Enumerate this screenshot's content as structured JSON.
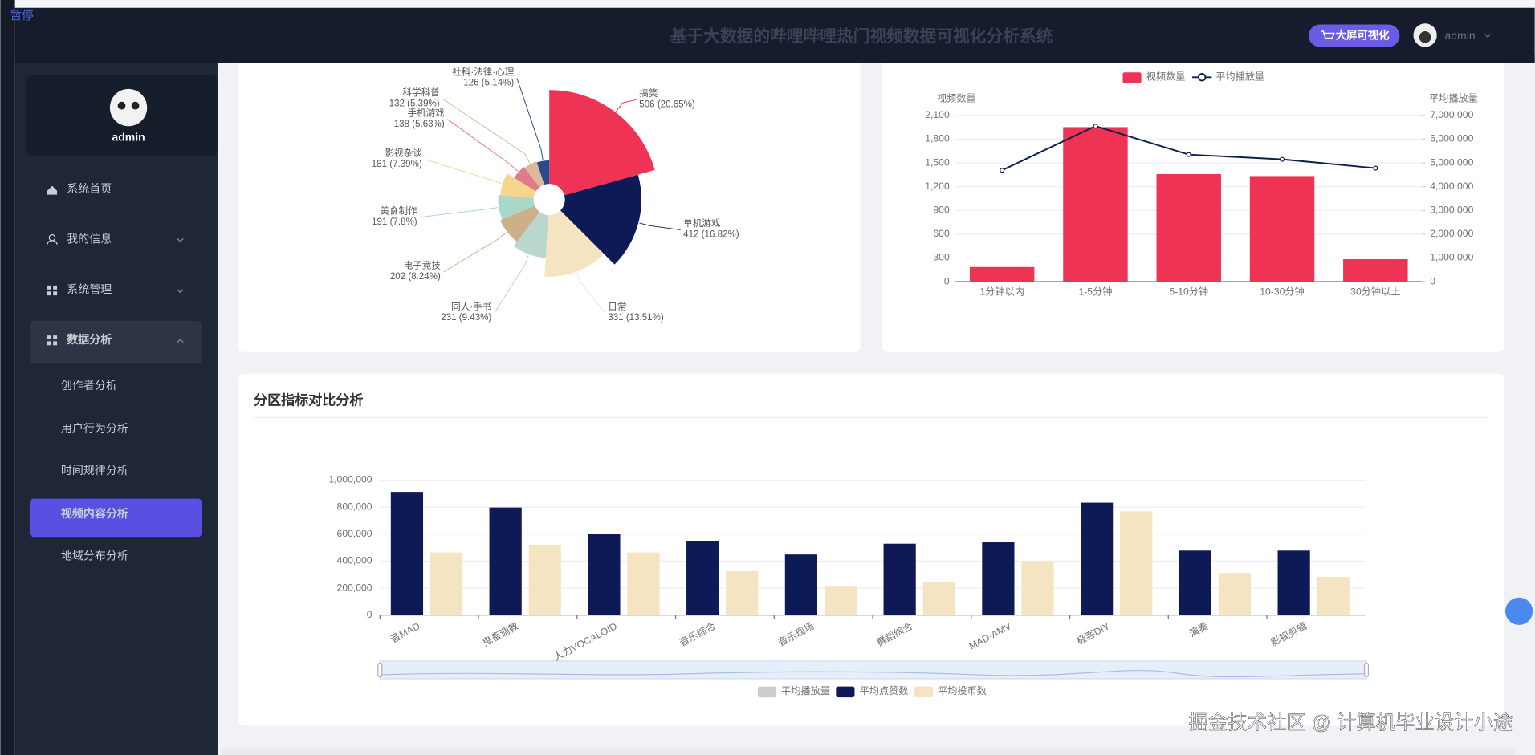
{
  "overlay": {
    "pause": "暂停"
  },
  "header": {
    "title": "基于大数据的哔哩哔哩热门视频数据可视化分析系统",
    "button": "大屏可视化",
    "user": "admin"
  },
  "sidebar": {
    "user": "admin",
    "menu": [
      "系统首页",
      "我的信息",
      "系统管理",
      "数据分析"
    ],
    "submenu": [
      "创作者分析",
      "用户行为分析",
      "时间规律分析",
      "视频内容分析",
      "地域分布分析"
    ]
  },
  "chart_data": [
    {
      "type": "pie",
      "rose": "radius",
      "categories": [
        "搞笑",
        "单机游戏",
        "日常",
        "同人·手书",
        "电子竞技",
        "美食制作",
        "影视杂谈",
        "手机游戏",
        "科学科普",
        "社科·法律·心理"
      ],
      "values": [
        506,
        412,
        331,
        231,
        202,
        191,
        181,
        138,
        132,
        126
      ],
      "value_labels": [
        "506 (20.65%)",
        "412 (16.82%)",
        "331 (13.51%)",
        "231 (9.43%)",
        "202 (8.24%)",
        "191 (7.8%)",
        "181 (7.39%)",
        "138 (5.63%)",
        "132 (5.39%)",
        "126 (5.14%)"
      ],
      "colors": [
        "#ef3355",
        "#0e1a55",
        "#f4e4c1",
        "#b9d6cf",
        "#cbb089",
        "#a9d8c9",
        "#f6d68d",
        "#e07b8c",
        "#dcb99a",
        "#2b4a8a"
      ]
    },
    {
      "type": "bar-line",
      "categories": [
        "1分钟以内",
        "1-5分钟",
        "5-10分钟",
        "10-30分钟",
        "30分钟以上"
      ],
      "series": [
        {
          "name": "视频数量",
          "type": "bar",
          "color": "#ef3355",
          "values": [
            185,
            1952,
            1359,
            1334,
            284
          ]
        },
        {
          "name": "平均播放量",
          "type": "line",
          "axis": "y2",
          "color": "#0d1f4a",
          "values": [
            4690000,
            6550000,
            5350000,
            5150000,
            4780000
          ]
        }
      ],
      "ylabel": "视频数量",
      "y2label": "平均播放量",
      "ylim": [
        0,
        2100
      ],
      "yticks": [
        0,
        300,
        600,
        900,
        {
          "value": 1200,
          "label": "1,200"
        },
        {
          "value": 1500,
          "label": "1,500"
        },
        {
          "value": 1800,
          "label": "1,800"
        },
        {
          "value": 2100,
          "label": "2,100"
        }
      ],
      "y2lim": [
        0,
        7000000
      ],
      "y2ticks": [
        0,
        {
          "value": 1000000,
          "label": "1,000,000"
        },
        {
          "value": 2000000,
          "label": "2,000,000"
        },
        {
          "value": 3000000,
          "label": "3,000,000"
        },
        {
          "value": 4000000,
          "label": "4,000,000"
        },
        {
          "value": 5000000,
          "label": "5,000,000"
        },
        {
          "value": 6000000,
          "label": "6,000,000"
        },
        {
          "value": 7000000,
          "label": "7,000,000"
        }
      ],
      "grid": true,
      "legend": "top"
    },
    {
      "type": "bar",
      "title": "分区指标对比分析",
      "categories": [
        "音MAD",
        "鬼畜调教",
        "人力VOCALOID",
        "音乐综合",
        "音乐现场",
        "舞蹈综合",
        "MAD·AMV",
        "极客DIY",
        "演奏",
        "影视剪辑"
      ],
      "hidden_series": [
        {
          "name": "平均播放量",
          "color": "#cccccc"
        }
      ],
      "series": [
        {
          "name": "平均点赞数",
          "color": "#0e1a55",
          "values": [
            913000,
            797000,
            601000,
            551000,
            449000,
            529000,
            543000,
            833000,
            478000,
            478000
          ]
        },
        {
          "name": "平均投币数",
          "color": "#f4e4c1",
          "values": [
            464000,
            522000,
            464000,
            326000,
            217000,
            246000,
            399000,
            768000,
            312000,
            283000
          ]
        }
      ],
      "ylim": [
        0,
        1000000
      ],
      "yticks": [
        0,
        {
          "value": 200000,
          "label": "200,000"
        },
        {
          "value": 400000,
          "label": "400,000"
        },
        {
          "value": 600000,
          "label": "600,000"
        },
        {
          "value": 800000,
          "label": "800,000"
        },
        {
          "value": 1000000,
          "label": "1,000,000"
        }
      ],
      "grid": true,
      "legend": "bottom"
    }
  ],
  "watermark": "掘金技术社区 @ 计算机毕业设计小途"
}
